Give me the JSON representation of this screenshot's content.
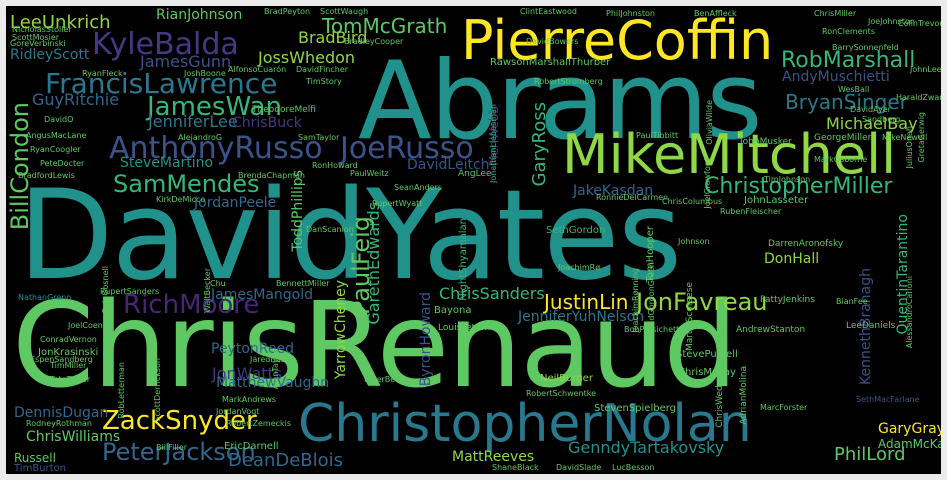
{
  "palette": {
    "yellow": "#fde725",
    "lgreen": "#8fd744",
    "green": "#5ec962",
    "mgreen": "#35b779",
    "teal": "#21918c",
    "bteal": "#2a788e",
    "blue": "#31688e",
    "dblue": "#3b528b",
    "indigo": "#443983",
    "purple": "#482677",
    "dpurple": "#440154",
    "bg": "#000000",
    "frame": "#ebebeb"
  },
  "words": {
    "abrams": "Abrams",
    "david_yates": "DavidYates",
    "chris_renaud": "ChrisRenaud",
    "pierre_coffin": "PierreCoffin",
    "mike_mitchell": "MikeMitchell",
    "christopher_nolan": "ChristopherNolan",
    "anthony_russo": "AnthonyRusso",
    "joe_russo": "JoeRusso",
    "francis_lawrence": "FrancisLawrence",
    "kyle_balda": "KyleBalda",
    "james_wan": "JamesWan",
    "sam_mendes": "SamMendes",
    "christopher_miller": "ChristopherMiller",
    "rob_marshall": "RobMarshall",
    "bryan_singer": "BryanSinger",
    "michael_bay": "MichaelBay",
    "bill_condon": "BillCondon",
    "zack_snyder": "ZackSnyder",
    "peter_jackson": "PeterJackson",
    "jon_favreau": "JonFavreau",
    "rich_moore": "RichMoore",
    "justin_lin": "JustinLin",
    "paul_feig": "PaulFeig",
    "tom_mcgrath": "TomMcGrath",
    "lee_unkrich": "LeeUnkrich",
    "rian_johnson": "RianJohnson",
    "brad_bird": "BradBird",
    "joss_whedon": "JossWhedon",
    "james_gunn": "JamesGunn",
    "ridley_scott": "RidleyScott",
    "guy_ritchie": "GuyRitchie",
    "jennifer_lee": "JenniferLee",
    "chris_buck": "ChrisBuck",
    "andy_muschietti": "AndyMuschietti",
    "steve_martino": "SteveMartino",
    "jordan_peele": "JordanPeele",
    "david_leitch": "DavidLeitch",
    "jake_kasdan": "JakeKasdan",
    "gary_ross": "GaryRoss",
    "todd_phillips": "ToddPhillips",
    "gareth_edwards": "GarethEdwards",
    "james_mangold": "JamesMangold",
    "chris_sanders": "ChrisSanders",
    "jennifer_yuh_nelson": "JenniferYuhNelson",
    "don_hall": "DonHall",
    "genndy_tartakovsky": "GenndyTartakovsky",
    "phil_lord": "PhilLord",
    "dean_deblois": "DeanDeBlois",
    "matt_reeves": "MattReeves",
    "chris_williams": "ChrisWilliams",
    "dennis_dugan": "DennisDugan",
    "peyton_reed": "PeytonReed",
    "jon_watts": "JonWatts",
    "matthew_vaughn": "MatthewVaughn",
    "byron_howard": "ByronHoward",
    "yarrow_cheney": "YarrowCheney",
    "quentin_tarantino": "QuentinTarantino",
    "kenneth_branagh": "KennethBranagh",
    "seth_gordon": "SethGordon",
    "gary_gray": "GaryGray",
    "adam_mckay": "AdamMcKay",
    "tim_burton": "TimBurton",
    "russell": "Russell",
    "rawson_marshall_thurber": "RawsonMarshallThurber",
    "night_shyamalan": "NightShyamalan",
    "nathan_greno": "NathanGreno",
    "rupert_sanders": "RupertSanders",
    "bradford_lewis": "BradfordLewis",
    "angus_maclane": "AngusMacLane",
    "mel_webb": "MerlWebb",
    "neil_burger": "NeilBurger",
    "steve_purcell": "StevePurcell",
    "chris_mckay": "ChrisMcKay",
    "chris_wedge": "ChrisWedge",
    "seth_macfarlane": "SethMacFarlane",
    "darren_aronofsky": "DarrenAronofsky",
    "steven_spielberg": "StevenSpielberg",
    "bradley_cooper": "BradleyCooper",
    "ron_clements": "RonClements",
    "barry_sonnenfeld": "BarrySonnenfeld",
    "george_miller": "GeorgeMiller",
    "john_musker": "JohnMusker",
    "ron_howard": "RonHoward",
    "pete_docter": "PeteDocter",
    "paul_tibbitt": "PaulTibbitt",
    "brenda_chapman": "BrendaChapman",
    "dan_scanlon": "DanScanlon",
    "john_lasseter": "JohnLasseter",
    "ruben_fleischer": "RubenFleischer",
    "martin_scorsese": "MartinScorsese",
    "rodney_rothman": "RodneyRothman",
    "shane_black": "ShaneBlack",
    "david_slade": "DavidSlade",
    "luc_besson": "LucBesson",
    "clint_eastwood": "ClintEastwood",
    "phil_johnston": "PhilJohnston",
    "ben_affleck": "BenAffleck",
    "chris_miller": "ChrisMiller",
    "joe_johnston": "JoeJohnston",
    "brad_peyton": "BradPeyton",
    "scott_waugh": "ScottWaugh",
    "ron_clements_2": "RonClements",
    "gore_verbinski": "GoreVerbinski",
    "nicholas_stoller": "NicholasStoller",
    "scott_mosier": "ScottMosier",
    "ryan_fleck": "RyanFleck",
    "josh_boone": "JoshBoone",
    "alfonso_cuaron": "AlfonsoCuarón",
    "david_fincher": "DavidFincher",
    "tim_story": "TimStory",
    "robert_stromberg": "RobertStromberg",
    "jonathan_liebesman": "JonathanLiebesman",
    "olivia_wilde": "OliviaWilde",
    "theodore_melfi": "TheodoreMelfi",
    "alejandro_g": "AlejandroG",
    "sam_taylor": "SamTaylor",
    "david_o": "DavidO",
    "ryan_coogler": "RyanCoogler",
    "paul_weitz": "PaulWeitz",
    "sean_anders": "SeanAnders",
    "ang_lee": "AngLee",
    "rupert_wyatt": "RupertWyatt",
    "ronnie_del_carmen": "RonnieDelCarmen",
    "joachim_r": "JoachimRø",
    "tom_hooper": "TomHooper",
    "joachim_ronning": "JoachimRønning",
    "bayona": "Bayona",
    "louis_leterrier": "LouisLeterrier",
    "bob_persichetti": "BobPersichetti",
    "andrew_stanton": "AndrewStanton",
    "lee_daniels": "LeeDaniels",
    "colin_trevorrow": "ColinTrevorrow",
    "walt_becker": "WaltBecker",
    "patty_jenkins": "PattyJenkins",
    "peter_berg": "PeterBerg",
    "robert_schwentke": "RobertSchwentke",
    "mark_andrews": "MarkAndrews",
    "jordan_vogt": "JordanVogt",
    "robert_zemeckis": "RobertZemeckis",
    "eric_darnell": "EricDarnell",
    "bill_filler": "BillFiller",
    "marc_forster": "MarcForster",
    "adrian_molina": "AdrianMolina",
    "jared_bush": "JaredBush",
    "joel_coen": "JoelCoen",
    "conrad_vernon": "ConradVernon",
    "jon_krasinski": "JonKrasinski",
    "tim_miller": "TimMiller",
    "tate_taylor": "TateTaylor",
    "rob_letterman": "RobLetterman",
    "scott_derrickson": "ScottDerrickson",
    "isspen_sandberg": "EspenSandberg",
    "alan_taylor": "AlanTaylor",
    "david_ayer": "DavidAyer",
    "john_lee_hancock": "JohnLeeHancock",
    "ryan_johnson_small": "RyanJohnson",
    "ron_clements_small": "RonClements",
    "mike_newell": "MikeNewell",
    "kirk_demicco": "KirkDeMicco",
    "raja_gosnell": "RajaGosnell",
    "chris_columbus": "ChrisColumbus",
    "david_gordon_green": "DavidGordonGreen",
    "wes_ball": "WesBall",
    "sandberg": "Sandberg",
    "greta_gerwig": "GretaGerwig",
    "alessandro_carloni": "AlessandroCarloni",
    "bianfee": "BianFee",
    "harald_zwart": "HaraldZwart",
    "mark_osborne": "MarkOsborne",
    "tim_johnson": "TimJohnson",
    "joel_crawford": "JoelCrawford",
    "chu": "Chu",
    "bennett": "BennettMiller",
    "johnson": "Johnson",
    "david_bowers": "DavidBowers",
    "julius_onah": "JuliusOnah"
  }
}
